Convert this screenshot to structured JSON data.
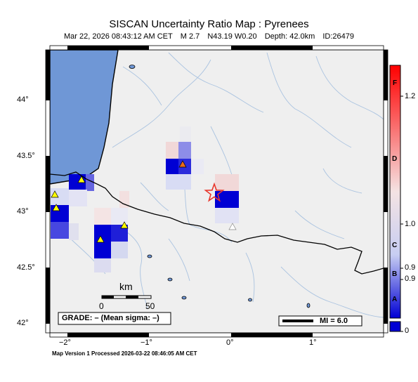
{
  "title": "SISCAN Uncertainty Ratio Map : Pyrenees",
  "event": {
    "datetime": "Mar 22, 2026 08:43:12 AM CET",
    "magnitude": "M 2.7",
    "location": "N43.19 W0.20",
    "depth": "Depth: 42.0km",
    "id": "ID:26479"
  },
  "axes": {
    "lat_ticks": [
      "44°",
      "43.5°",
      "43°",
      "42.5°",
      "42°"
    ],
    "lon_ticks": [
      "−2°",
      "−1°",
      "0°",
      "1°"
    ]
  },
  "scale_bar": {
    "unit": "km",
    "start": "0",
    "end": "50"
  },
  "grade_box": "GRADE: – (Mean sigma: –)",
  "mi_box": "MI = 6.0",
  "legend": {
    "grade_letters": [
      "F",
      "D",
      "C",
      "B",
      "A"
    ],
    "values": [
      "1.2",
      "1.0",
      "0.9",
      "0.9",
      "0"
    ]
  },
  "footer": "Map Version 1 Processed 2026-03-22 08:46:05 AM CET",
  "colors": {
    "ocean": "#6f97d6",
    "land": "#efefef",
    "high_ratio": "#e8372c",
    "low_ratio": "#0000d4",
    "station": "#ffff00",
    "epicenter": "#e8372c"
  },
  "icons": {
    "station": "triangle-icon",
    "epicenter": "star-icon"
  }
}
